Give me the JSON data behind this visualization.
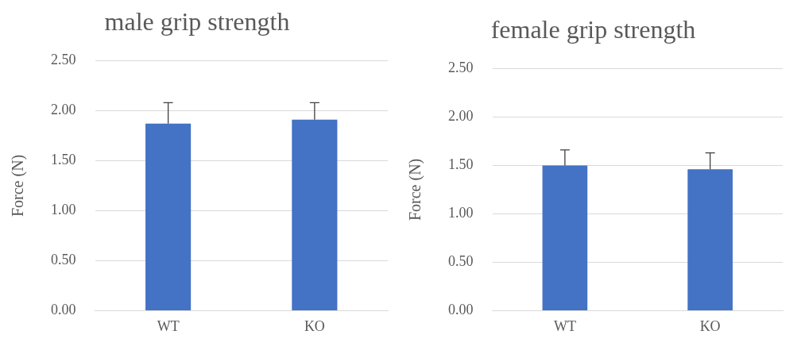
{
  "chart_data": [
    {
      "type": "bar",
      "title": "male grip strength",
      "ylabel": "Force (N)",
      "categories": [
        "WT",
        "KO"
      ],
      "values": [
        1.87,
        1.91
      ],
      "errors": [
        [
          1.87,
          2.08
        ],
        [
          1.91,
          2.08
        ]
      ],
      "color": "#4472c4",
      "ylim": [
        0,
        2.5
      ],
      "yticks": [
        {
          "value": 0,
          "label": "0.00"
        },
        {
          "value": 0.5,
          "label": "0.50"
        },
        {
          "value": 1,
          "label": "1.00"
        },
        {
          "value": 1.5,
          "label": "1.50"
        },
        {
          "value": 2,
          "label": "2.00"
        },
        {
          "value": 2.5,
          "label": "2.50"
        }
      ],
      "grid": "y",
      "legend": false
    },
    {
      "type": "bar",
      "title": "female grip strength",
      "ylabel": "Force (N)",
      "categories": [
        "WT",
        "KO"
      ],
      "values": [
        1.5,
        1.46
      ],
      "errors": [
        [
          1.5,
          1.66
        ],
        [
          1.46,
          1.63
        ]
      ],
      "color": "#4472c4",
      "ylim": [
        0,
        2.5
      ],
      "yticks": [
        {
          "value": 0,
          "label": "0.00"
        },
        {
          "value": 0.5,
          "label": "0.50"
        },
        {
          "value": 1,
          "label": "1.00"
        },
        {
          "value": 1.5,
          "label": "1.50"
        },
        {
          "value": 2,
          "label": "2.00"
        },
        {
          "value": 2.5,
          "label": "2.50"
        }
      ],
      "grid": "y",
      "legend": false
    }
  ]
}
